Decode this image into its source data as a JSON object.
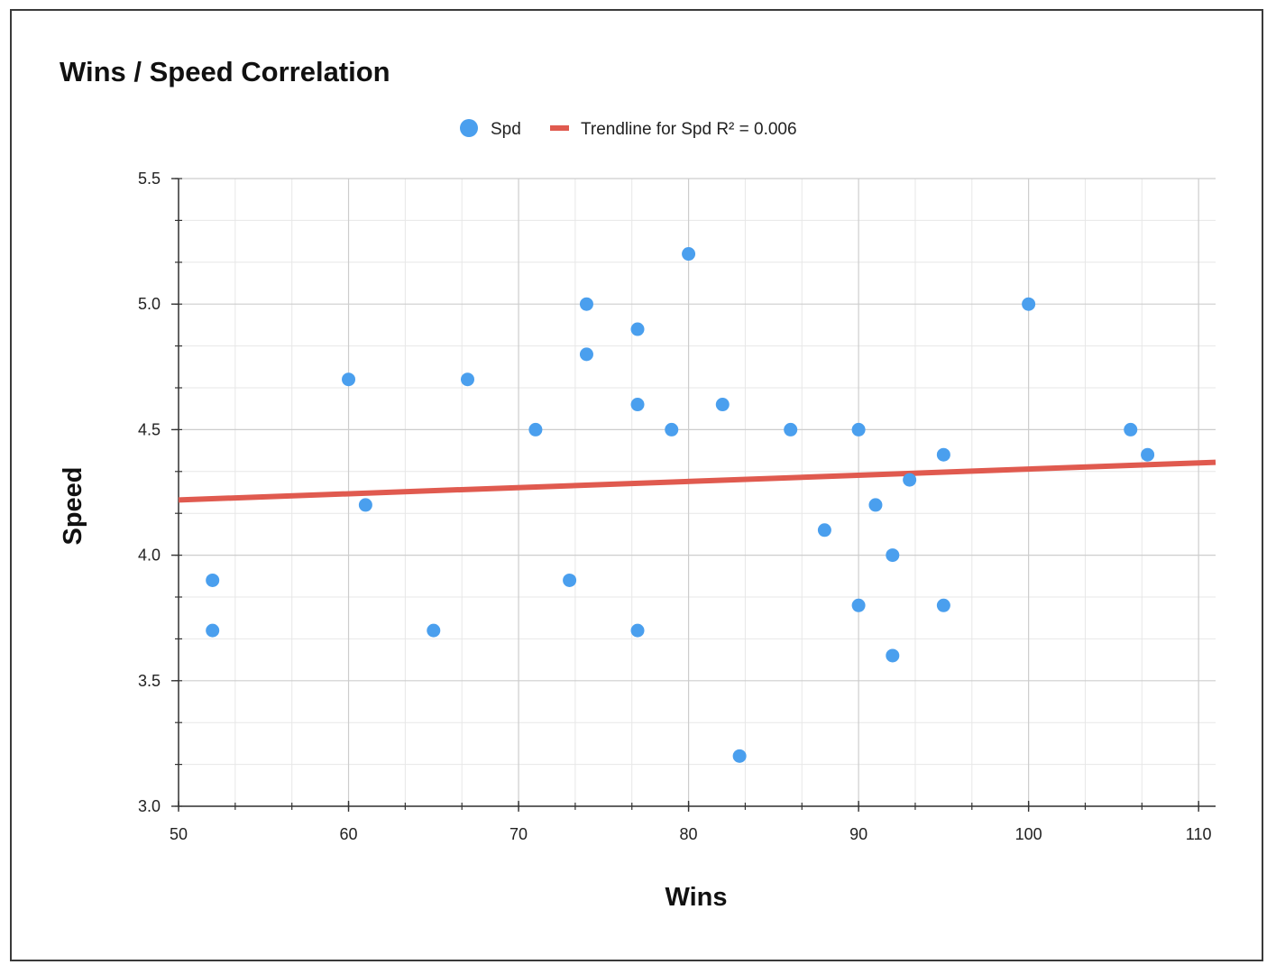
{
  "chart_data": {
    "type": "scatter",
    "title": "Wins / Speed Correlation",
    "xlabel": "Wins",
    "ylabel": "Speed",
    "xlim": [
      50,
      111
    ],
    "ylim": [
      3.0,
      5.5
    ],
    "x_ticks": [
      50,
      60,
      70,
      80,
      90,
      100,
      110
    ],
    "y_ticks": [
      3.0,
      3.5,
      4.0,
      4.5,
      5.0,
      5.5
    ],
    "x_tick_labels": [
      "50",
      "60",
      "70",
      "80",
      "90",
      "100",
      "110"
    ],
    "y_tick_labels": [
      "3.0",
      "3.5",
      "4.0",
      "4.5",
      "5.0",
      "5.5"
    ],
    "grid": true,
    "legend_position": "top-center",
    "series": [
      {
        "name": "Spd",
        "color": "#4a9fee",
        "points": [
          {
            "x": 52,
            "y": 3.9
          },
          {
            "x": 52,
            "y": 3.7
          },
          {
            "x": 60,
            "y": 4.7
          },
          {
            "x": 61,
            "y": 4.2
          },
          {
            "x": 65,
            "y": 3.7
          },
          {
            "x": 67,
            "y": 4.7
          },
          {
            "x": 71,
            "y": 4.5
          },
          {
            "x": 73,
            "y": 3.9
          },
          {
            "x": 74,
            "y": 5.0
          },
          {
            "x": 74,
            "y": 4.8
          },
          {
            "x": 77,
            "y": 4.9
          },
          {
            "x": 77,
            "y": 4.6
          },
          {
            "x": 77,
            "y": 3.7
          },
          {
            "x": 79,
            "y": 4.5
          },
          {
            "x": 80,
            "y": 5.2
          },
          {
            "x": 82,
            "y": 4.6
          },
          {
            "x": 83,
            "y": 3.2
          },
          {
            "x": 86,
            "y": 4.5
          },
          {
            "x": 88,
            "y": 4.1
          },
          {
            "x": 90,
            "y": 4.5
          },
          {
            "x": 90,
            "y": 3.8
          },
          {
            "x": 91,
            "y": 4.2
          },
          {
            "x": 92,
            "y": 4.0
          },
          {
            "x": 92,
            "y": 3.6
          },
          {
            "x": 93,
            "y": 4.3
          },
          {
            "x": 95,
            "y": 4.4
          },
          {
            "x": 95,
            "y": 3.8
          },
          {
            "x": 100,
            "y": 5.0
          },
          {
            "x": 106,
            "y": 4.5
          },
          {
            "x": 107,
            "y": 4.4
          }
        ]
      }
    ],
    "trendline": {
      "name": "Trendline for Spd R² = 0.006",
      "color": "#e05a4f",
      "start": {
        "x": 50,
        "y": 4.22
      },
      "end": {
        "x": 111,
        "y": 4.37
      }
    }
  }
}
